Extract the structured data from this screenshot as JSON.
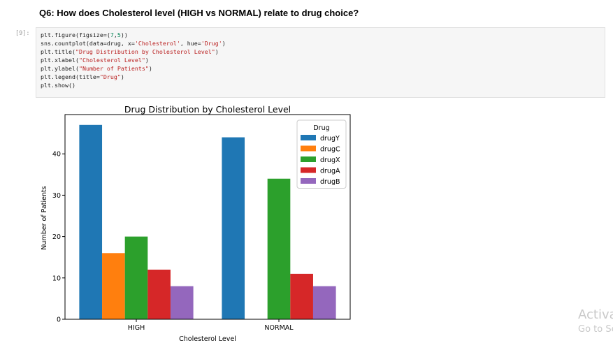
{
  "notebook": {
    "heading": "Q6: How does Cholesterol level (HIGH vs NORMAL) relate to drug choice?",
    "prompt": "[9]:",
    "code_lines": [
      [
        {
          "t": "plt.figure(figsize=("
        },
        {
          "t": "7",
          "c": "num"
        },
        {
          "t": ","
        },
        {
          "t": "5",
          "c": "num"
        },
        {
          "t": "))"
        }
      ],
      [
        {
          "t": "sns.countplot(data=drug, x="
        },
        {
          "t": "'Cholesterol'",
          "c": "str"
        },
        {
          "t": ", hue="
        },
        {
          "t": "'Drug'",
          "c": "str"
        },
        {
          "t": ")"
        }
      ],
      [
        {
          "t": "plt.title("
        },
        {
          "t": "\"Drug Distribution by Cholesterol Level\"",
          "c": "str"
        },
        {
          "t": ")"
        }
      ],
      [
        {
          "t": "plt.xlabel("
        },
        {
          "t": "\"Cholesterol Level\"",
          "c": "str"
        },
        {
          "t": ")"
        }
      ],
      [
        {
          "t": "plt.ylabel("
        },
        {
          "t": "\"Number of Patients\"",
          "c": "str"
        },
        {
          "t": ")"
        }
      ],
      [
        {
          "t": "plt.legend(title="
        },
        {
          "t": "\"Drug\"",
          "c": "str"
        },
        {
          "t": ")"
        }
      ],
      [
        {
          "t": "plt.show()"
        }
      ]
    ]
  },
  "chart_data": {
    "type": "bar",
    "title": "Drug Distribution by Cholesterol Level",
    "xlabel": "Cholesterol Level",
    "ylabel": "Number of Patients",
    "categories": [
      "HIGH",
      "NORMAL"
    ],
    "ylim": [
      0,
      49.5
    ],
    "yticks": [
      0,
      10,
      20,
      30,
      40
    ],
    "grid": false,
    "legend": {
      "title": "Drug",
      "placement": "top-right"
    },
    "series": [
      {
        "name": "drugY",
        "color": "#1f77b4",
        "values": [
          47,
          44
        ]
      },
      {
        "name": "drugC",
        "color": "#ff7f0e",
        "values": [
          16,
          0
        ]
      },
      {
        "name": "drugX",
        "color": "#2ca02c",
        "values": [
          20,
          34
        ]
      },
      {
        "name": "drugA",
        "color": "#d62728",
        "values": [
          12,
          11
        ]
      },
      {
        "name": "drugB",
        "color": "#9467bd",
        "values": [
          8,
          8
        ]
      }
    ]
  },
  "watermark": {
    "line1": "Activa",
    "line2": "Go to Se"
  }
}
